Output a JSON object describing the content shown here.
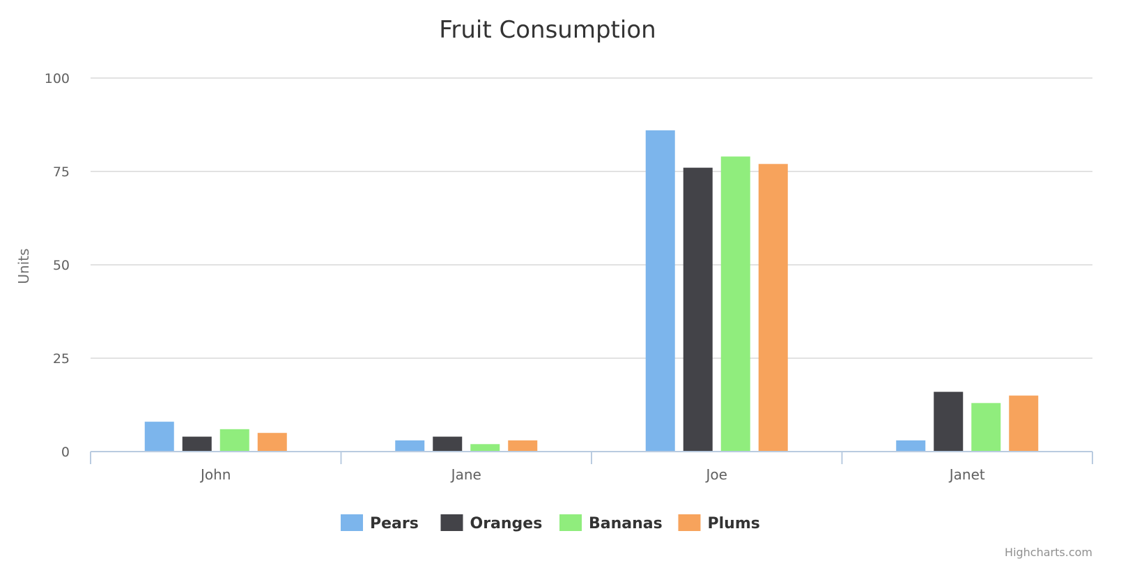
{
  "chart_data": {
    "type": "bar",
    "title": "Fruit Consumption",
    "xlabel": "",
    "ylabel": "Units",
    "categories": [
      "John",
      "Jane",
      "Joe",
      "Janet"
    ],
    "ylim": [
      0,
      100
    ],
    "yticks": [
      "0",
      "25",
      "50",
      "75",
      "100"
    ],
    "grid": true,
    "legend_position": "bottom-center",
    "series": [
      {
        "name": "Pears",
        "color": "#7cb5ec",
        "values": [
          8,
          3,
          86,
          3
        ]
      },
      {
        "name": "Oranges",
        "color": "#434348",
        "values": [
          4,
          4,
          76,
          16
        ]
      },
      {
        "name": "Bananas",
        "color": "#90ed7d",
        "values": [
          6,
          2,
          79,
          13
        ]
      },
      {
        "name": "Plums",
        "color": "#f7a35c",
        "values": [
          5,
          3,
          77,
          15
        ]
      }
    ],
    "credits": "Highcharts.com"
  }
}
